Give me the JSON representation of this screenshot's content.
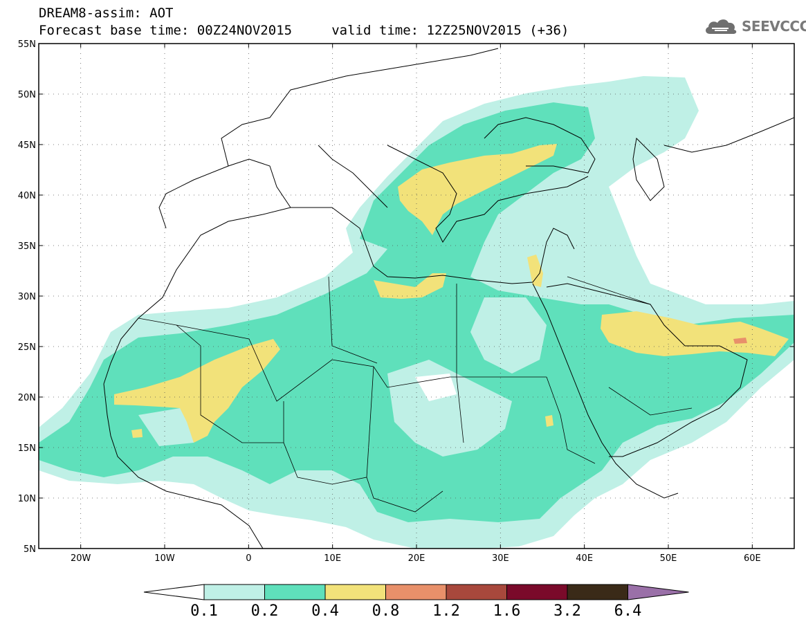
{
  "header": {
    "title_line1": "DREAM8-assim: AOT",
    "title_line2": "Forecast base time: 00Z24NOV2015     valid time: 12Z25NOV2015 (+36)"
  },
  "logo": {
    "text": "SEEVCCC",
    "icon": "cloud-icon"
  },
  "map": {
    "projection": "lat-lon",
    "lon_range": [
      -25,
      65
    ],
    "lat_range": [
      5,
      55
    ],
    "grid": "dotted",
    "lat_ticks": [
      {
        "value": 55,
        "label": "55N"
      },
      {
        "value": 50,
        "label": "50N"
      },
      {
        "value": 45,
        "label": "45N"
      },
      {
        "value": 40,
        "label": "40N"
      },
      {
        "value": 35,
        "label": "35N"
      },
      {
        "value": 30,
        "label": "30N"
      },
      {
        "value": 25,
        "label": "25N"
      },
      {
        "value": 20,
        "label": "20N"
      },
      {
        "value": 15,
        "label": "15N"
      },
      {
        "value": 10,
        "label": "10N"
      },
      {
        "value": 5,
        "label": "5N"
      }
    ],
    "lon_ticks": [
      {
        "value": -20,
        "label": "20W"
      },
      {
        "value": -10,
        "label": "10W"
      },
      {
        "value": 0,
        "label": "0"
      },
      {
        "value": 10,
        "label": "10E"
      },
      {
        "value": 20,
        "label": "20E"
      },
      {
        "value": 30,
        "label": "30E"
      },
      {
        "value": 40,
        "label": "40E"
      },
      {
        "value": 50,
        "label": "50E"
      },
      {
        "value": 60,
        "label": "60E"
      }
    ]
  },
  "colorbar": {
    "levels": [
      "0.1",
      "0.2",
      "0.4",
      "0.8",
      "1.2",
      "1.6",
      "3.2",
      "6.4"
    ],
    "colors": [
      "#ffffff",
      "#bff0e6",
      "#5fe0bb",
      "#f2e27a",
      "#e8906a",
      "#a8483c",
      "#7a0a2a",
      "#3a2a18",
      "#9a70a8"
    ]
  }
}
